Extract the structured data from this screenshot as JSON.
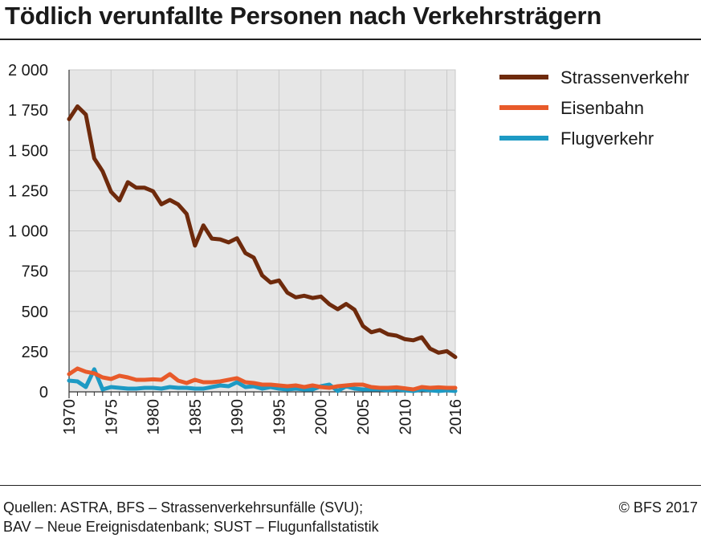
{
  "title": "Tödlich verunfallte Personen nach Verkehrsträgern",
  "source_line1": "Quellen: ASTRA, BFS – Strassenverkehrsunfälle (SVU);",
  "source_line2": "BAV – Neue Ereignisdatenbank; SUST – Flugunfallstatistik",
  "copyright": "© BFS 2017",
  "chart_data": {
    "type": "line",
    "title": "Tödlich verunfallte Personen nach Verkehrsträgern",
    "xlabel": "",
    "ylabel": "",
    "xlim": [
      1970,
      2016
    ],
    "ylim": [
      0,
      2000
    ],
    "yticks": [
      0,
      250,
      500,
      750,
      1000,
      1250,
      1500,
      1750,
      2000
    ],
    "ytick_labels": [
      "0",
      "250",
      "500",
      "750",
      "1 000",
      "1 250",
      "1 500",
      "1 750",
      "2 000"
    ],
    "xticks": [
      1970,
      1975,
      1980,
      1985,
      1990,
      1995,
      2000,
      2005,
      2010,
      2016
    ],
    "xtick_labels": [
      "1970",
      "1975",
      "1980",
      "1985",
      "1990",
      "1995",
      "2000",
      "2005",
      "2010",
      "2016"
    ],
    "grid": true,
    "legend_position": "right",
    "x": [
      1970,
      1971,
      1972,
      1973,
      1974,
      1975,
      1976,
      1977,
      1978,
      1979,
      1980,
      1981,
      1982,
      1983,
      1984,
      1985,
      1986,
      1987,
      1988,
      1989,
      1990,
      1991,
      1992,
      1993,
      1994,
      1995,
      1996,
      1997,
      1998,
      1999,
      2000,
      2001,
      2002,
      2003,
      2004,
      2005,
      2006,
      2007,
      2008,
      2009,
      2010,
      2011,
      2012,
      2013,
      2014,
      2015,
      2016
    ],
    "series": [
      {
        "name": "Strassenverkehr",
        "color": "#6e2a0c",
        "values": [
          1694,
          1773,
          1722,
          1450,
          1370,
          1243,
          1189,
          1302,
          1268,
          1268,
          1246,
          1165,
          1192,
          1164,
          1105,
          908,
          1034,
          952,
          947,
          928,
          954,
          862,
          834,
          723,
          679,
          692,
          616,
          587,
          597,
          583,
          592,
          544,
          513,
          546,
          510,
          409,
          370,
          384,
          357,
          349,
          327,
          320,
          339,
          269,
          243,
          253,
          216
        ]
      },
      {
        "name": "Eisenbahn",
        "color": "#e85a2a",
        "values": [
          110,
          145,
          125,
          115,
          90,
          80,
          100,
          90,
          75,
          75,
          78,
          75,
          110,
          70,
          55,
          75,
          60,
          60,
          65,
          75,
          85,
          60,
          55,
          45,
          45,
          40,
          35,
          40,
          30,
          40,
          30,
          25,
          35,
          40,
          45,
          45,
          30,
          25,
          25,
          28,
          22,
          15,
          30,
          25,
          28,
          25,
          25
        ]
      },
      {
        "name": "Flugverkehr",
        "color": "#1d9ac4",
        "values": [
          70,
          65,
          30,
          140,
          15,
          30,
          25,
          20,
          20,
          25,
          25,
          20,
          30,
          25,
          25,
          20,
          20,
          30,
          40,
          35,
          60,
          30,
          35,
          20,
          30,
          20,
          15,
          20,
          15,
          15,
          35,
          45,
          5,
          35,
          20,
          15,
          15,
          15,
          10,
          15,
          10,
          5,
          15,
          10,
          5,
          10,
          5
        ]
      }
    ]
  }
}
